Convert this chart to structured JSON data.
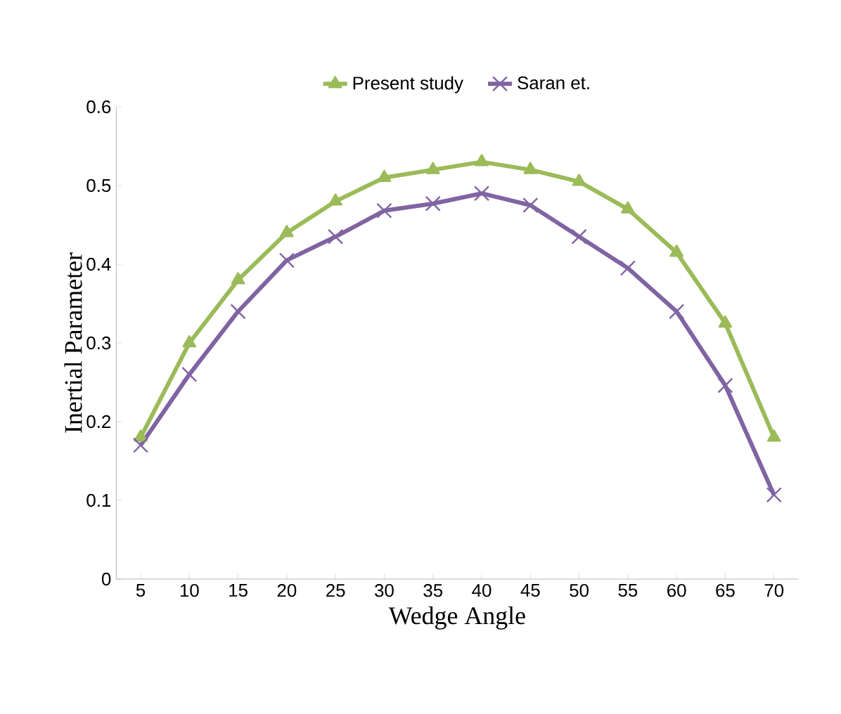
{
  "chart_data": {
    "type": "line",
    "xlabel": "Wedge Angle",
    "ylabel": "Inertial Parameter",
    "categories": [
      "5",
      "10",
      "15",
      "20",
      "25",
      "30",
      "35",
      "40",
      "45",
      "50",
      "55",
      "60",
      "65",
      "70"
    ],
    "series": [
      {
        "name": "Present study",
        "color": "#9bbb59",
        "marker": "triangle",
        "values": [
          0.18,
          0.3,
          0.38,
          0.44,
          0.48,
          0.51,
          0.52,
          0.53,
          0.52,
          0.505,
          0.47,
          0.415,
          0.325,
          0.18
        ]
      },
      {
        "name": "Saran et.",
        "color": "#8064a2",
        "marker": "cross",
        "values": [
          0.17,
          0.26,
          0.34,
          0.405,
          0.435,
          0.468,
          0.477,
          0.49,
          0.475,
          0.435,
          0.395,
          0.34,
          0.246,
          0.107
        ]
      }
    ],
    "ylim": [
      0,
      0.6
    ],
    "yticks": [
      0,
      0.1,
      0.2,
      0.3,
      0.4,
      0.5,
      0.6
    ],
    "grid": false,
    "legend": "top",
    "line_style": "solid"
  }
}
